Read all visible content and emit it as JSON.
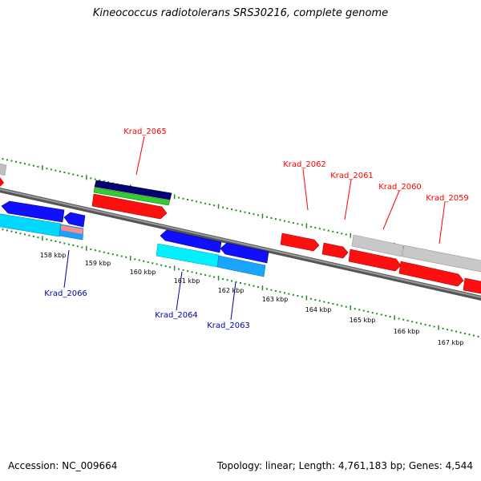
{
  "title": "Kineococcus radiotolerans SRS30216, complete genome",
  "footer": {
    "accession": "Accession: NC_009664",
    "summary": "Topology: linear; Length: 4,761,183 bp; Genes: 4,544"
  },
  "colors": {
    "axis": "#777777",
    "tick": "#228b22",
    "forward_gene": "#ff0000",
    "reverse_gene": "#0000ff",
    "other_feature": "#c0c0c0",
    "cds_light": "#00e5ff",
    "cds_blue": "#1e90ff",
    "rna_navy": "#000080",
    "rna_green": "#32cd32",
    "pink": "#ff8080",
    "label_forward": "#ff0000",
    "label_reverse": "#0000ff"
  },
  "scale_labels": [
    "158 kbp",
    "159 kbp",
    "160 kbp",
    "161 kbp",
    "162 kbp",
    "163 kbp",
    "164 kbp",
    "165 kbp",
    "166 kbp",
    "167 kbp"
  ],
  "gene_labels": {
    "krad_2065": "Krad_2065",
    "krad_2062": "Krad_2062",
    "krad_2061": "Krad_2061",
    "krad_2060": "Krad_2060",
    "krad_2059": "Krad_2059",
    "krad_2066": "Krad_2066",
    "krad_2064": "Krad_2064",
    "krad_2063": "Krad_2063"
  }
}
